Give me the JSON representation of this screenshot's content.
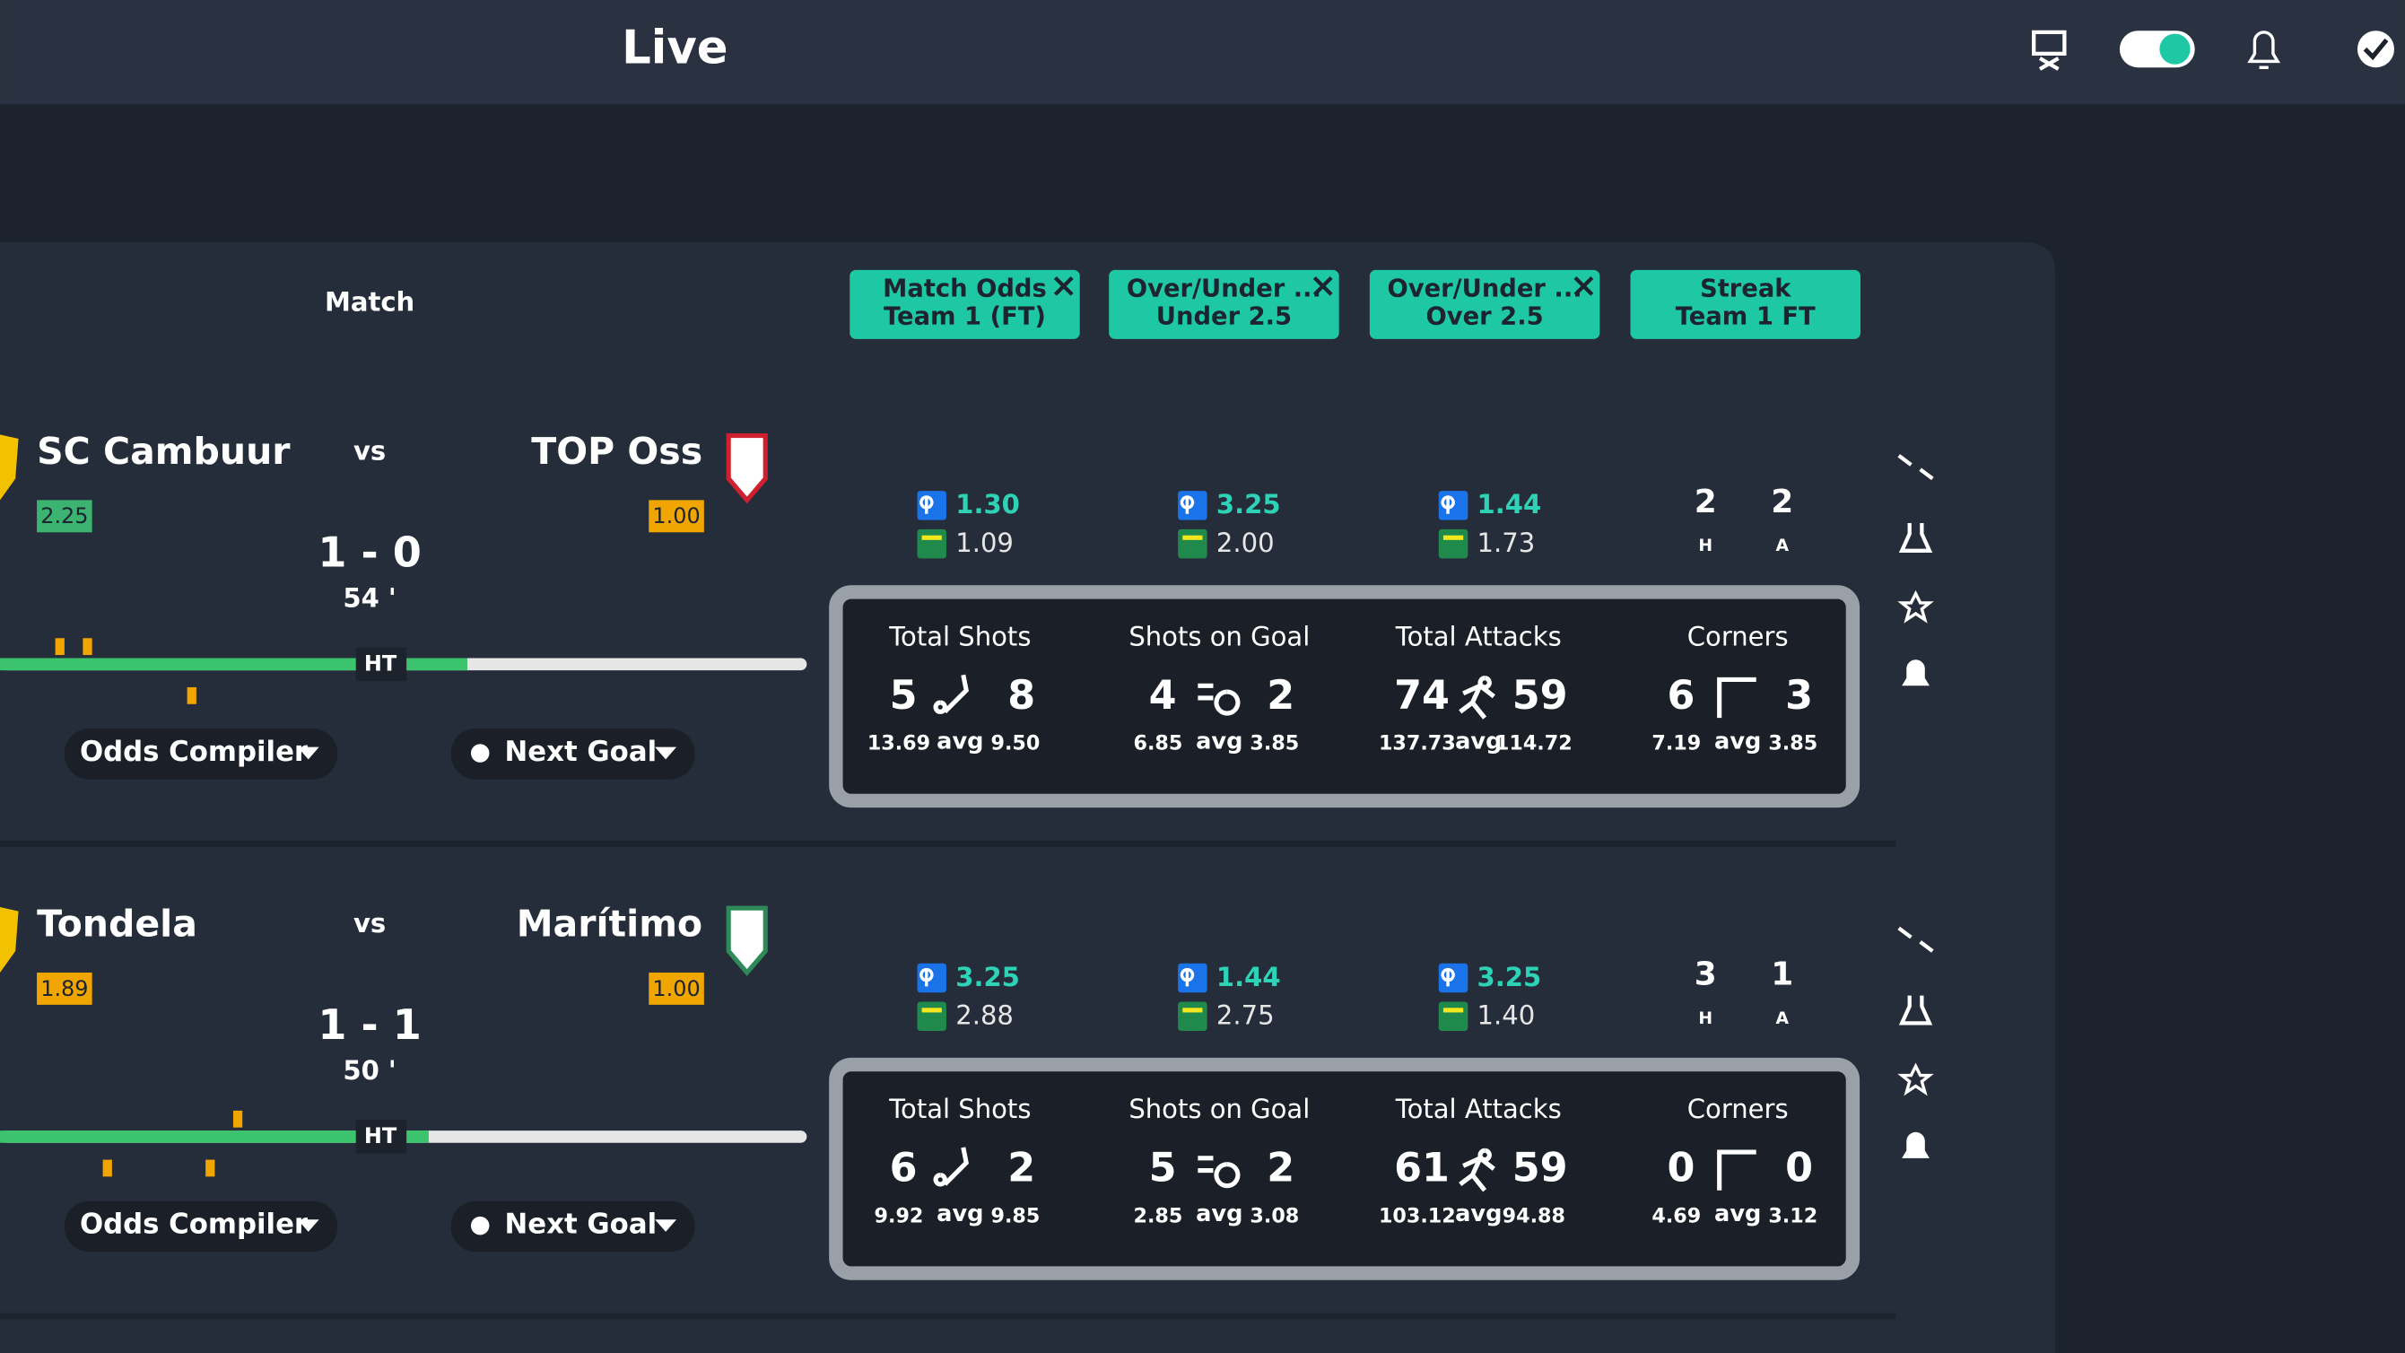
{
  "header": {
    "title": "Live"
  },
  "table": {
    "match_header": "Match",
    "columns": [
      {
        "line1": "Match Odds",
        "line2": "Team 1 (FT)",
        "closable": true
      },
      {
        "line1": "Over/Under ...",
        "line2": "Under 2.5",
        "closable": true
      },
      {
        "line1": "Over/Under ...",
        "line2": "Over 2.5",
        "closable": true
      },
      {
        "line1": "Streak",
        "line2": "Team 1 FT",
        "closable": false
      }
    ],
    "vs": "vs",
    "ht": "HT",
    "odds_compiler": "Odds Compiler",
    "next_goal": "Next Goal",
    "stat_labels": [
      "Total Shots",
      "Shots on Goal",
      "Total Attacks",
      "Corners"
    ],
    "avg": "avg",
    "home_label": "H",
    "away_label": "A",
    "matches": [
      {
        "home": "SC Cambuur",
        "away": "TOP Oss",
        "home_odds": "2.25",
        "home_odds_color": "#3cb371",
        "away_odds": "1.00",
        "away_odds_color": "#f0a500",
        "score": "1 - 0",
        "minute": "54 '",
        "odds": [
          {
            "b": "1.30",
            "bet365": "1.09"
          },
          {
            "b": "3.25",
            "bet365": "2.00"
          },
          {
            "b": "1.44",
            "bet365": "1.73"
          }
        ],
        "streak": {
          "home": "2",
          "away": "2"
        },
        "stats": [
          {
            "home": "5",
            "away": "8",
            "home_avg": "13.69",
            "away_avg": "9.50"
          },
          {
            "home": "4",
            "away": "2",
            "home_avg": "6.85",
            "away_avg": "3.85"
          },
          {
            "home": "74",
            "away": "59",
            "home_avg": "137.73",
            "away_avg": "114.72"
          },
          {
            "home": "6",
            "away": "3",
            "home_avg": "7.19",
            "away_avg": "3.85"
          }
        ]
      },
      {
        "home": "Tondela",
        "away": "Marítimo",
        "home_odds": "1.89",
        "home_odds_color": "#f0a500",
        "away_odds": "1.00",
        "away_odds_color": "#f0a500",
        "score": "1 - 1",
        "minute": "50 '",
        "odds": [
          {
            "b": "3.25",
            "bet365": "2.88"
          },
          {
            "b": "1.44",
            "bet365": "2.75"
          },
          {
            "b": "3.25",
            "bet365": "1.40"
          }
        ],
        "streak": {
          "home": "3",
          "away": "1"
        },
        "stats": [
          {
            "home": "6",
            "away": "2",
            "home_avg": "9.92",
            "away_avg": "9.85"
          },
          {
            "home": "5",
            "away": "2",
            "home_avg": "2.85",
            "away_avg": "3.08"
          },
          {
            "home": "61",
            "away": "59",
            "home_avg": "103.12",
            "away_avg": "94.88"
          },
          {
            "home": "0",
            "away": "0",
            "home_avg": "4.69",
            "away_avg": "3.12"
          }
        ]
      }
    ]
  }
}
